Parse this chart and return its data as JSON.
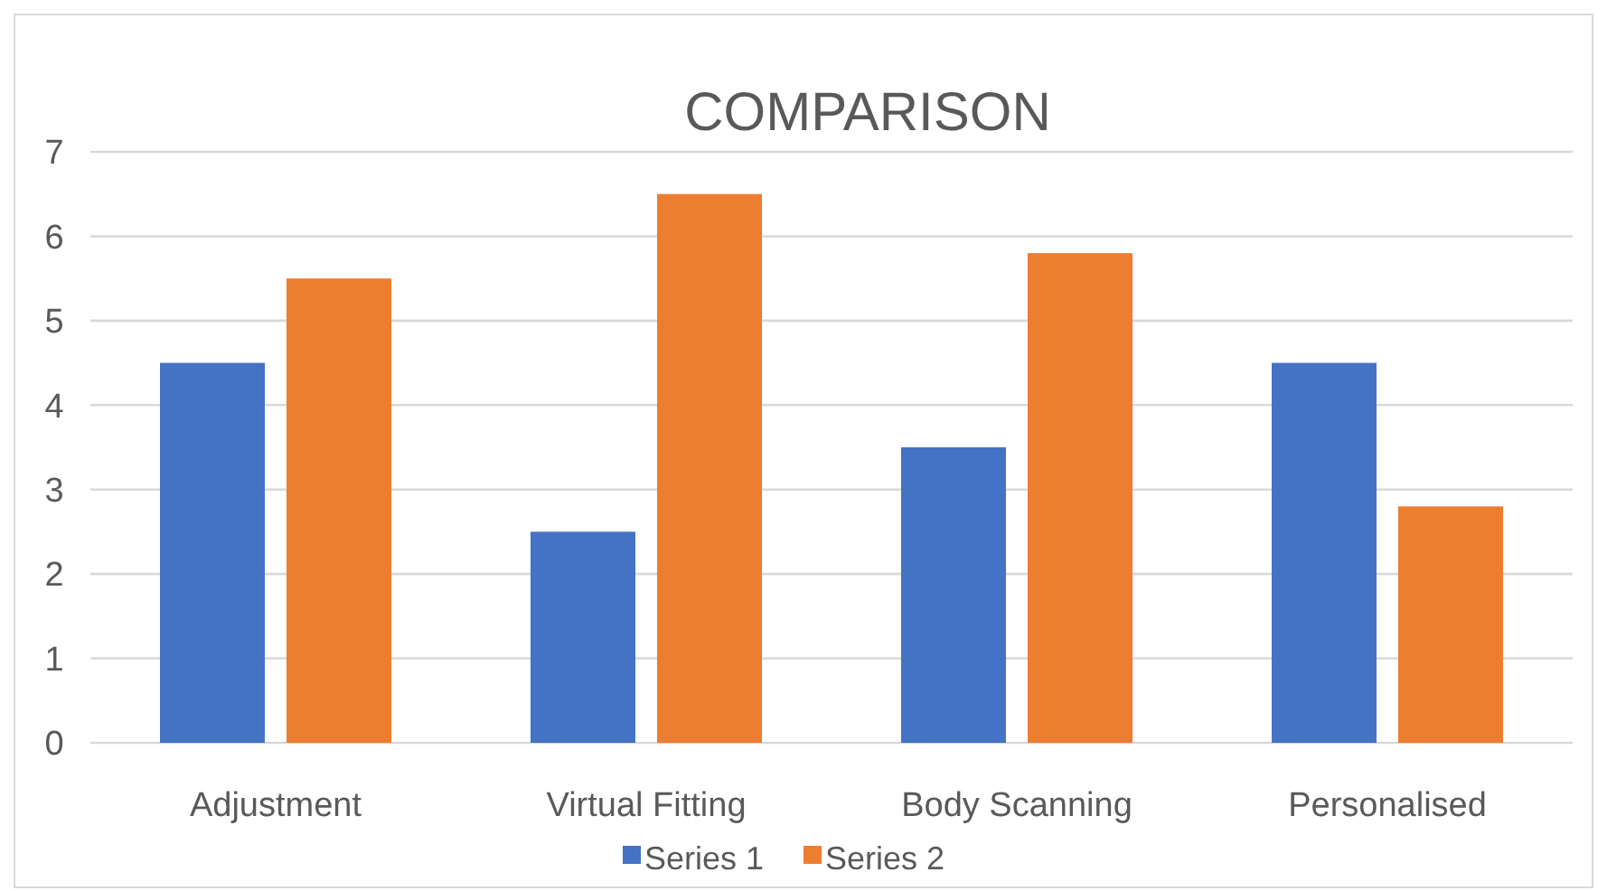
{
  "chart_data": {
    "type": "bar",
    "title": "COMPARISON",
    "categories": [
      "Adjustment",
      "Virtual Fitting",
      "Body Scanning",
      "Personalised"
    ],
    "series": [
      {
        "name": "Series 1",
        "color": "#4472c4",
        "values": [
          4.5,
          2.5,
          3.5,
          4.5
        ]
      },
      {
        "name": "Series 2",
        "color": "#ed7d31",
        "values": [
          5.5,
          6.5,
          5.8,
          2.8
        ]
      }
    ],
    "ylim": [
      0,
      7
    ],
    "yticks": [
      0,
      1,
      2,
      3,
      4,
      5,
      6,
      7
    ],
    "grid": "y",
    "legend": "bottom"
  }
}
